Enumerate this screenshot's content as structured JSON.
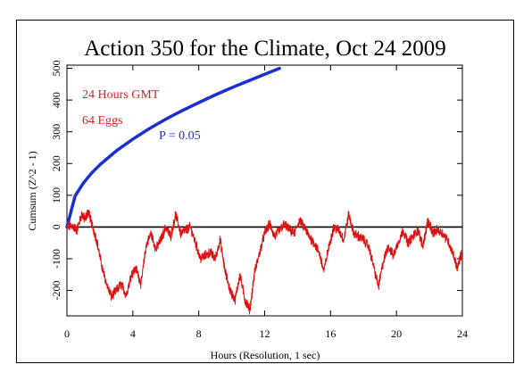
{
  "chart_data": {
    "type": "line",
    "title": "Action 350 for the Climate, Oct 24 2009",
    "xlabel": "Hours (Resolution, 1 sec)",
    "ylabel": "Cumsum (Z^2 - 1)",
    "xlim": [
      0,
      24
    ],
    "ylim": [
      -280,
      510
    ],
    "x_ticks": [
      "0",
      "4",
      "8",
      "12",
      "16",
      "20",
      "24"
    ],
    "y_ticks": [
      "-200",
      "-100",
      "0",
      "100",
      "200",
      "300",
      "400",
      "500"
    ],
    "grid": false,
    "annotations": [
      {
        "text": "24 Hours GMT",
        "color": "#e02020"
      },
      {
        "text": "64 Eggs",
        "color": "#e02020"
      },
      {
        "text": "P = 0.05",
        "color": "#1a2fd0"
      }
    ],
    "series": [
      {
        "role": "cumsum",
        "color": "#e01010",
        "x": [
          0,
          0.3,
          0.6,
          0.9,
          1.1,
          1.3,
          1.5,
          1.8,
          2.1,
          2.4,
          2.7,
          3.0,
          3.3,
          3.6,
          3.9,
          4.2,
          4.5,
          4.8,
          5.1,
          5.4,
          5.7,
          6.0,
          6.3,
          6.6,
          6.9,
          7.2,
          7.5,
          7.8,
          8.1,
          8.4,
          8.7,
          9.0,
          9.3,
          9.6,
          9.9,
          10.2,
          10.5,
          10.8,
          11.1,
          11.4,
          11.7,
          12.0,
          12.3,
          12.6,
          12.9,
          13.2,
          13.5,
          13.8,
          14.1,
          14.4,
          14.7,
          15.0,
          15.3,
          15.6,
          15.9,
          16.2,
          16.5,
          16.8,
          17.1,
          17.4,
          17.7,
          18.0,
          18.3,
          18.6,
          18.9,
          19.2,
          19.5,
          19.8,
          20.1,
          20.4,
          20.7,
          21.0,
          21.3,
          21.6,
          21.9,
          22.2,
          22.5,
          22.8,
          23.1,
          23.4,
          23.7,
          24.0
        ],
        "values": [
          0,
          5,
          -10,
          40,
          25,
          50,
          10,
          -40,
          -120,
          -180,
          -220,
          -200,
          -180,
          -215,
          -150,
          -130,
          -180,
          -60,
          -20,
          -70,
          -40,
          0,
          -30,
          40,
          -20,
          -10,
          0,
          -50,
          -100,
          -90,
          -80,
          -100,
          -40,
          -140,
          -200,
          -230,
          -150,
          -230,
          -260,
          -140,
          -80,
          -20,
          10,
          -30,
          -10,
          10,
          -10,
          -20,
          20,
          0,
          -30,
          -50,
          -80,
          -140,
          -60,
          0,
          -10,
          -40,
          40,
          -20,
          -30,
          -40,
          -60,
          -120,
          -190,
          -110,
          -60,
          -90,
          -50,
          -10,
          -50,
          -30,
          -10,
          -60,
          20,
          -20,
          -10,
          -20,
          -40,
          -80,
          -130,
          -70
        ]
      },
      {
        "role": "p05-envelope",
        "name": "P = 0.05",
        "color": "#1a2fd0",
        "x": [
          0,
          0.5,
          1,
          1.5,
          2,
          3,
          4,
          5,
          6,
          7,
          8,
          9,
          10,
          11,
          12,
          12.9
        ],
        "values": [
          0,
          98,
          139,
          170,
          196,
          240,
          277,
          310,
          340,
          367,
          392,
          416,
          439,
          460,
          481,
          500
        ]
      }
    ],
    "reference_line": {
      "y": 0,
      "color": "#000000"
    }
  }
}
